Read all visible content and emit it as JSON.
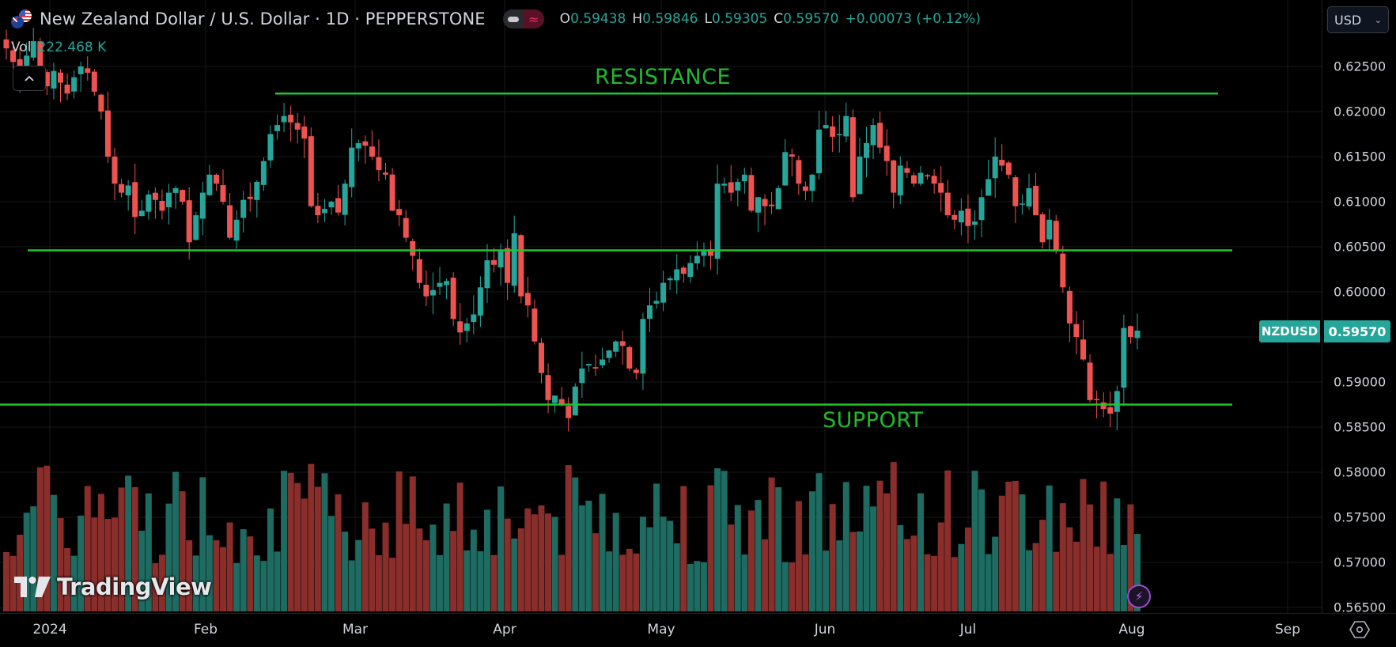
{
  "header": {
    "title": "New Zealand Dollar / U.S. Dollar · 1D · PEPPERSTONE",
    "ohlc": {
      "o_label": "O",
      "o": "0.59438",
      "h_label": "H",
      "h": "0.59846",
      "l_label": "L",
      "l": "0.59305",
      "c_label": "C",
      "c": "0.59570",
      "change": "+0.00073 (+0.12%)"
    },
    "volume_label": "Vol",
    "volume_value": "222.468 K",
    "collapse_icon": "chevron-up-icon"
  },
  "currency_selector": {
    "value": "USD"
  },
  "price_axis": {
    "ticks": [
      "0.62500",
      "0.62000",
      "0.61500",
      "0.61000",
      "0.60500",
      "0.60000",
      "0.59000",
      "0.58500",
      "0.58000",
      "0.57500",
      "0.57000",
      "0.56500"
    ]
  },
  "last_price": {
    "symbol": "NZDUSD",
    "value": "0.59570"
  },
  "time_axis": {
    "ticks": [
      "2024",
      "Feb",
      "Mar",
      "Apr",
      "May",
      "Jun",
      "Jul",
      "Aug",
      "Sep"
    ]
  },
  "annotations": {
    "resistance": "RESISTANCE",
    "support": "SUPPORT"
  },
  "branding": {
    "logo_text": "TradingView"
  },
  "colors": {
    "up": "#26a69a",
    "down": "#ef5350",
    "vol_up": "#1d6b61",
    "vol_down": "#8a2e2b",
    "lines": "#22c52a",
    "accent": "#26a69a"
  },
  "chart_data": {
    "type": "candlestick",
    "title": "New Zealand Dollar / U.S. Dollar · 1D · PEPPERSTONE",
    "ylim": [
      0.5645,
      0.6295
    ],
    "y_ticks": [
      0.625,
      0.62,
      0.615,
      0.61,
      0.605,
      0.6,
      0.595,
      0.59,
      0.585,
      0.58,
      0.575,
      0.57,
      0.565
    ],
    "x_ticks": [
      "2024",
      "Feb",
      "Mar",
      "Apr",
      "May",
      "Jun",
      "Jul",
      "Aug",
      "Sep"
    ],
    "horizontal_lines": [
      {
        "label": "RESISTANCE",
        "price": 0.622
      },
      {
        "label": "",
        "price": 0.6046
      },
      {
        "label": "SUPPORT",
        "price": 0.5875
      }
    ],
    "last": {
      "open": 0.59438,
      "high": 0.59846,
      "low": 0.59305,
      "close": 0.5957,
      "volume": "222.468K"
    },
    "closes": [
      0.627,
      0.6255,
      0.623,
      0.6262,
      0.6278,
      0.624,
      0.6228,
      0.6245,
      0.6232,
      0.622,
      0.6238,
      0.625,
      0.6243,
      0.6222,
      0.62,
      0.615,
      0.612,
      0.611,
      0.6118,
      0.6083,
      0.609,
      0.6108,
      0.6102,
      0.609,
      0.611,
      0.6115,
      0.61,
      0.6055,
      0.6085,
      0.611,
      0.613,
      0.612,
      0.61,
      0.606,
      0.608,
      0.6102,
      0.6103,
      0.6122,
      0.6145,
      0.6175,
      0.6185,
      0.6195,
      0.6188,
      0.618,
      0.617,
      0.6095,
      0.6085,
      0.6092,
      0.61,
      0.6088,
      0.612,
      0.616,
      0.6165,
      0.6162,
      0.615,
      0.6135,
      0.613,
      0.609,
      0.6085,
      0.606,
      0.604,
      0.601,
      0.5995,
      0.6002,
      0.601,
      0.6012,
      0.597,
      0.5955,
      0.5965,
      0.5975,
      0.6005,
      0.6035,
      0.603,
      0.6045,
      0.601,
      0.6065,
      0.5995,
      0.5985,
      0.5945,
      0.591,
      0.588,
      0.5885,
      0.5875,
      0.586,
      0.5895,
      0.5915,
      0.592,
      0.5915,
      0.5925,
      0.5935,
      0.5945,
      0.594,
      0.5915,
      0.591,
      0.597,
      0.5985,
      0.599,
      0.601,
      0.6015,
      0.6025,
      0.602,
      0.6032,
      0.604,
      0.6045,
      0.604,
      0.612,
      0.612,
      0.611,
      0.6122,
      0.613,
      0.609,
      0.6105,
      0.6095,
      0.6095,
      0.6115,
      0.6155,
      0.615,
      0.612,
      0.6112,
      0.613,
      0.618,
      0.6185,
      0.6172,
      0.6175,
      0.6195,
      0.6105,
      0.615,
      0.6165,
      0.6185,
      0.616,
      0.6145,
      0.611,
      0.614,
      0.6132,
      0.612,
      0.6132,
      0.6128,
      0.612,
      0.611,
      0.6085,
      0.608,
      0.609,
      0.6073,
      0.6078,
      0.6105,
      0.6125,
      0.615,
      0.614,
      0.613,
      0.6095,
      0.6098,
      0.6115,
      0.6085,
      0.6055,
      0.608,
      0.6045,
      0.6005,
      0.5965,
      0.595,
      0.5925,
      0.588,
      0.588,
      0.587,
      0.5865,
      0.589,
      0.596,
      0.595,
      0.5957
    ]
  }
}
